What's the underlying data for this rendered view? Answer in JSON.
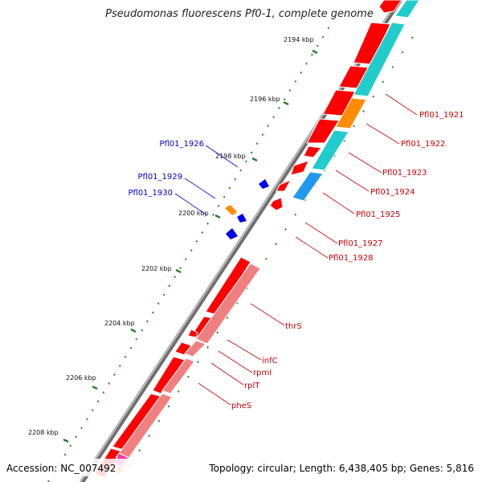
{
  "title": "Pseudomonas fluorescens Pf0-1, complete genome",
  "footer": {
    "accession": "Accession: NC_007492",
    "summary": "Topology: circular; Length: 6,438,405 bp; Genes: 5,816"
  },
  "ticks": [
    "2194 kbp",
    "2196 kbp",
    "2198 kbp",
    "2200 kbp",
    "2202 kbp",
    "2204 kbp",
    "2206 kbp",
    "2208 kbp"
  ],
  "outer_labels": [
    "Pfl01_1926",
    "Pfl01_1929",
    "Pfl01_1930"
  ],
  "inner_labels": [
    "Pfl01_1921",
    "Pfl01_1922",
    "Pfl01_1923",
    "Pfl01_1924",
    "Pfl01_1925",
    "Pfl01_1927",
    "Pfl01_1928",
    "thrS",
    "infC",
    "rpmI",
    "rplT",
    "pheS"
  ],
  "colors": {
    "cds": "#ff0000",
    "rna_gene": "#f08080",
    "cog_cyan": "#22cccc",
    "cog_orange": "#ff8c00",
    "cog_sky": "#2299ee",
    "cog_pink": "#ff3399",
    "outer_blue": "#0000ee",
    "outer_orange": "#ff8c00",
    "tick": "#2a7f2a",
    "backbone": "#808080",
    "label_red": "#cc0000",
    "label_blue": "#0000cc"
  }
}
